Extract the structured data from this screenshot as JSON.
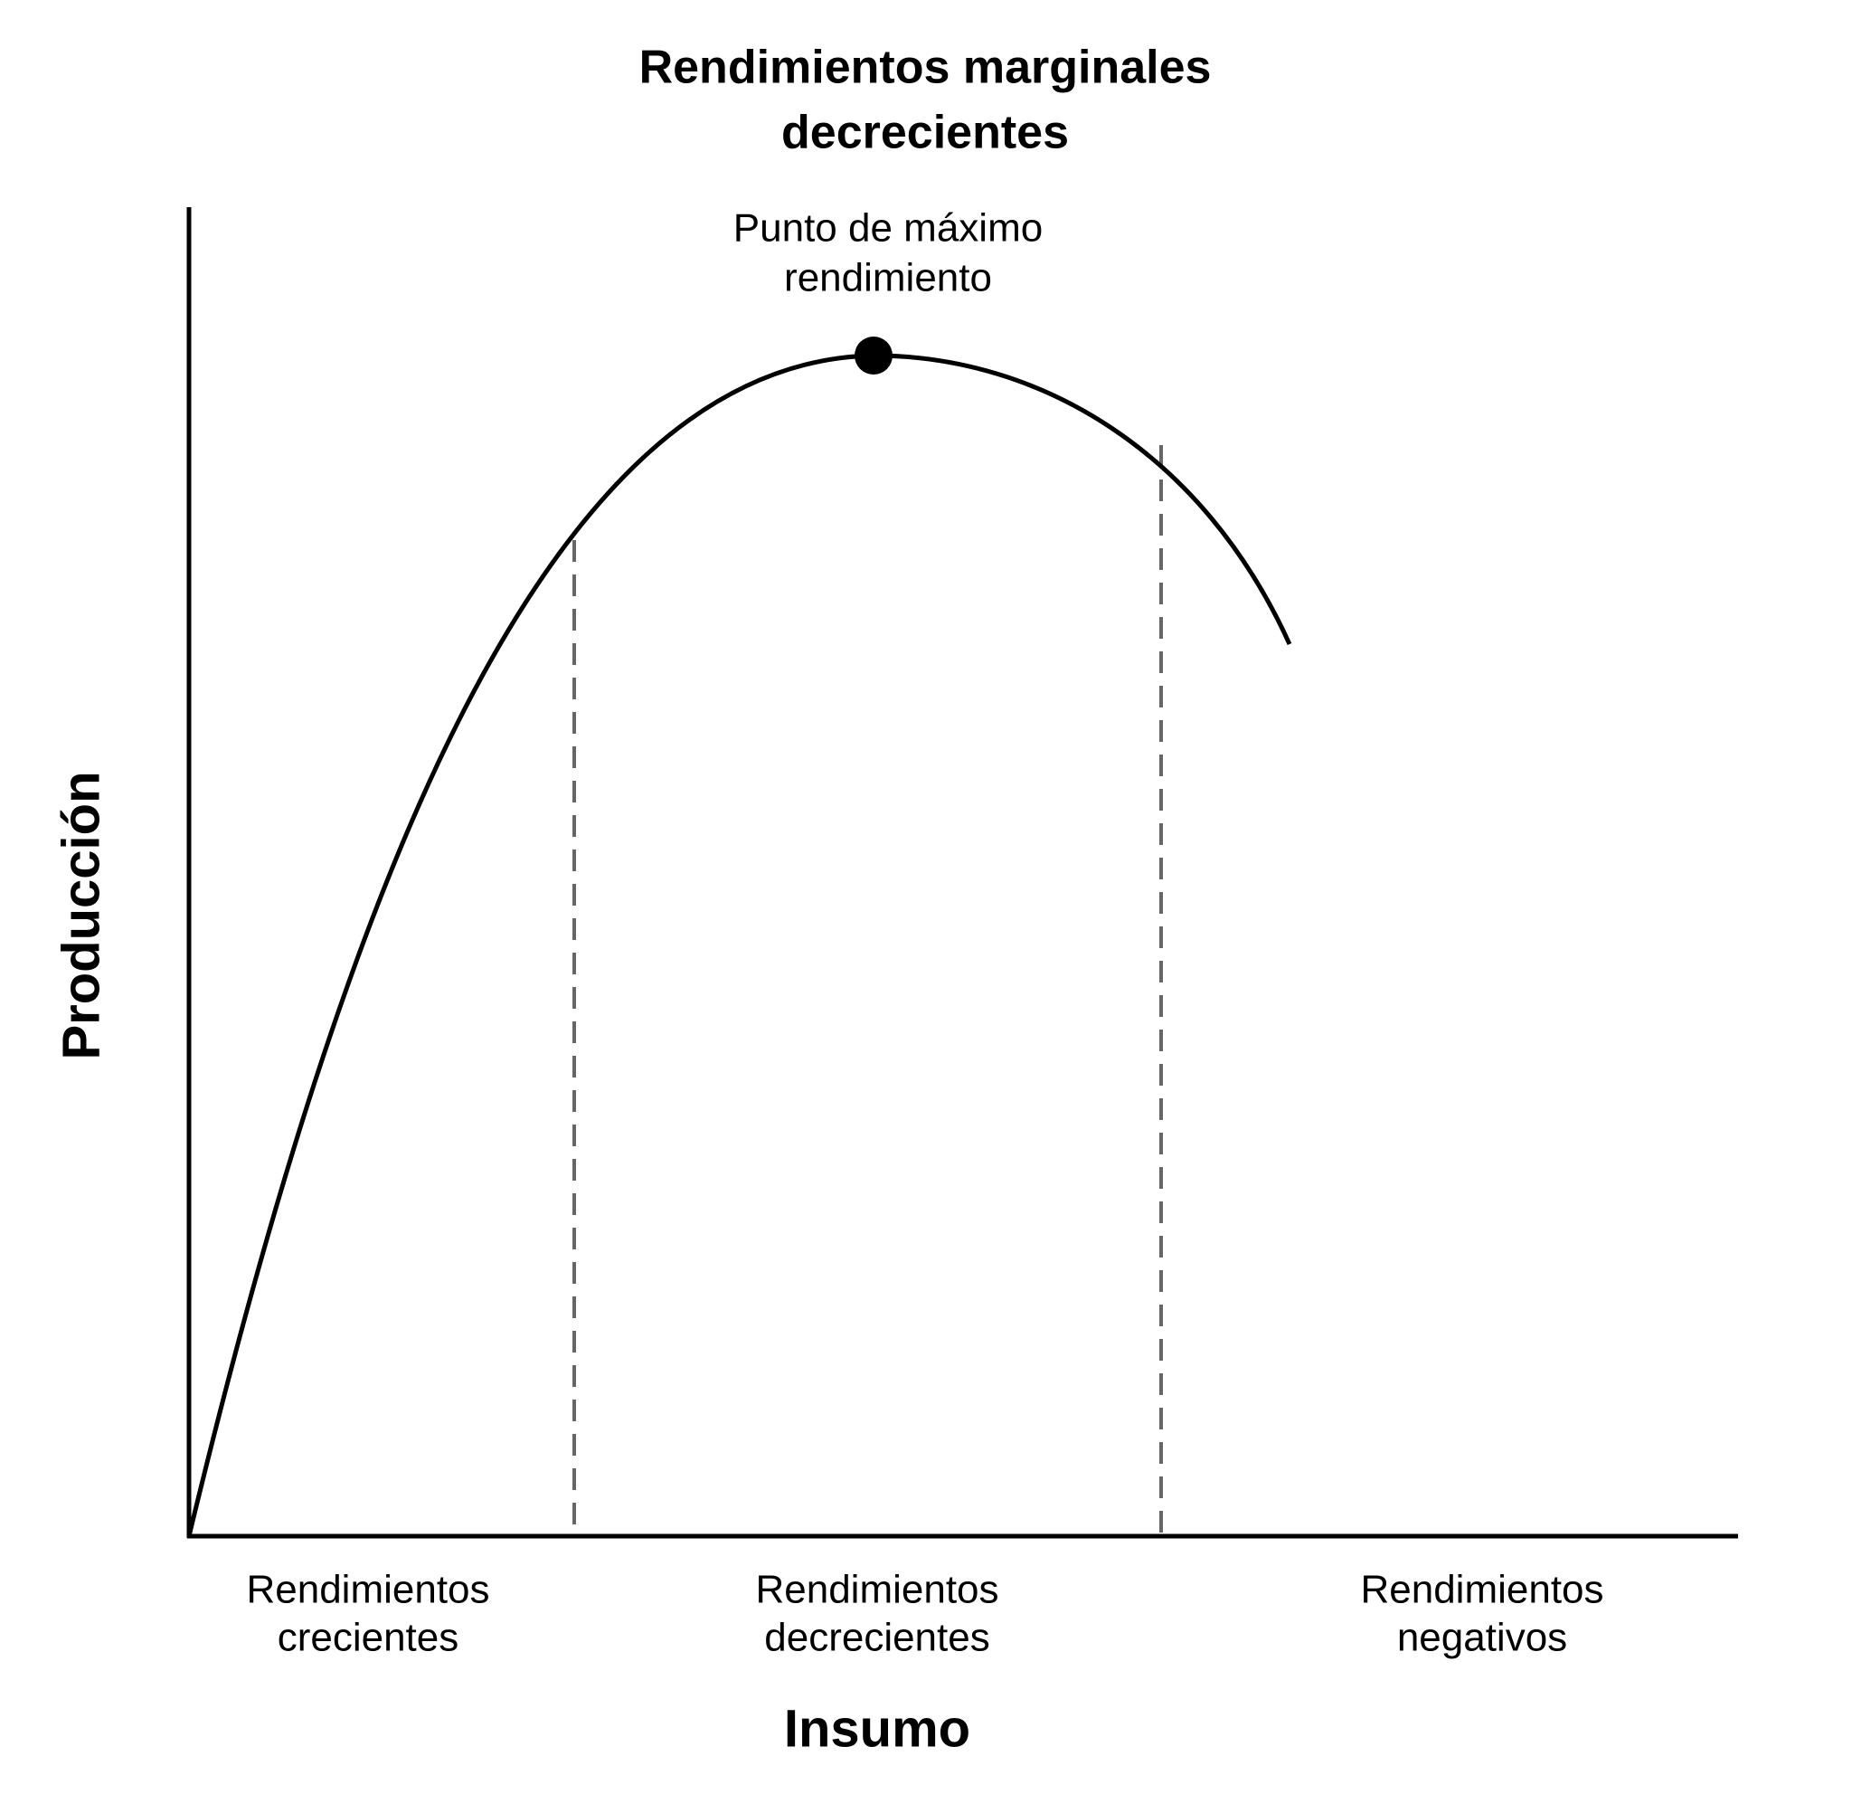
{
  "title": [
    "Rendimientos marginales",
    "decrecientes"
  ],
  "annotation": [
    "Punto de máximo",
    "rendimiento"
  ],
  "y_axis_label": "Producción",
  "x_axis_label": "Insumo",
  "regions": [
    [
      "Rendimientos",
      "crecientes"
    ],
    [
      "Rendimientos",
      "decrecientes"
    ],
    [
      "Rendimientos",
      "negativos"
    ]
  ]
}
